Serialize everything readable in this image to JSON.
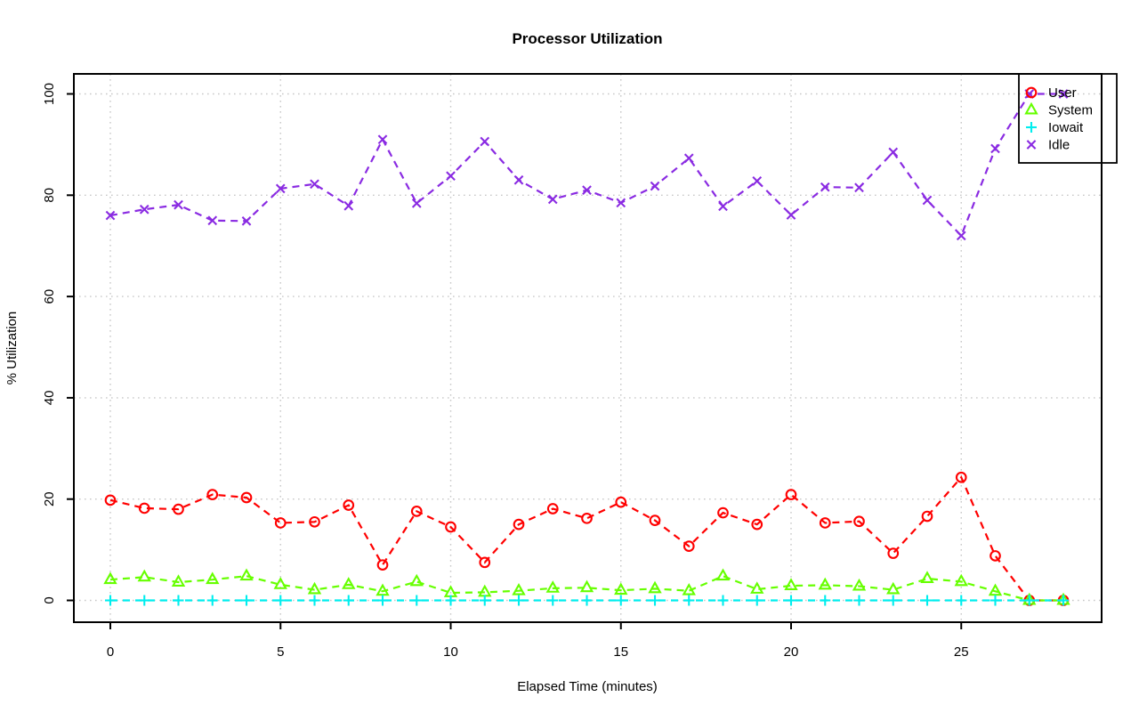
{
  "figure": {
    "title": "Processor Utilization",
    "xlabel": "Elapsed Time (minutes)",
    "ylabel": "% Utilization"
  },
  "chart_data": {
    "type": "line",
    "title": "Processor Utilization",
    "xlabel": "Elapsed Time (minutes)",
    "ylabel": "% Utilization",
    "x": [
      0,
      1,
      2,
      3,
      4,
      5,
      6,
      7,
      8,
      9,
      10,
      11,
      12,
      13,
      14,
      15,
      16,
      17,
      18,
      19,
      20,
      21,
      22,
      23,
      24,
      25,
      26,
      27,
      28
    ],
    "series": [
      {
        "name": "User",
        "color": "#ff0000",
        "marker": "circle",
        "values": [
          19.8,
          18.2,
          18.0,
          20.9,
          20.3,
          15.3,
          15.5,
          18.8,
          7.0,
          17.6,
          14.5,
          7.5,
          15.0,
          18.1,
          16.2,
          19.4,
          15.8,
          10.7,
          17.3,
          15.0,
          20.9,
          15.3,
          15.6,
          9.3,
          16.6,
          24.3,
          8.8,
          0.0,
          0.0
        ]
      },
      {
        "name": "System",
        "color": "#66ff00",
        "marker": "triangle",
        "values": [
          4.1,
          4.6,
          3.6,
          4.1,
          4.8,
          3.1,
          2.1,
          3.1,
          1.8,
          3.7,
          1.5,
          1.6,
          1.9,
          2.4,
          2.5,
          2.0,
          2.3,
          1.9,
          4.8,
          2.2,
          2.9,
          3.0,
          2.8,
          2.1,
          4.3,
          3.7,
          1.8,
          0.0,
          0.0
        ]
      },
      {
        "name": "Iowait",
        "color": "#00eeee",
        "marker": "plus",
        "values": [
          0,
          0,
          0,
          0,
          0,
          0,
          0,
          0,
          0,
          0,
          0,
          0,
          0,
          0,
          0,
          0,
          0,
          0,
          0,
          0,
          0,
          0,
          0,
          0,
          0,
          0,
          0,
          0,
          0
        ]
      },
      {
        "name": "Idle",
        "color": "#8a2be2",
        "marker": "x",
        "values": [
          76.0,
          77.2,
          78.1,
          75.0,
          74.9,
          81.3,
          82.2,
          77.9,
          91.0,
          78.4,
          83.8,
          90.6,
          83.0,
          79.2,
          81.0,
          78.5,
          81.8,
          87.3,
          77.8,
          82.8,
          76.1,
          81.6,
          81.5,
          88.5,
          79.0,
          72.0,
          89.2,
          100.0,
          100.0
        ]
      }
    ],
    "x_ticks": [
      0,
      5,
      10,
      15,
      20,
      25
    ],
    "y_ticks": [
      0,
      20,
      40,
      60,
      80,
      100
    ],
    "xlim": [
      0,
      28
    ],
    "ylim": [
      0,
      100
    ],
    "grid": "dotted",
    "line_style": "dashed",
    "legend_position": "top-right",
    "axis_color": "#000000",
    "grid_color": "#c8c8c8"
  }
}
